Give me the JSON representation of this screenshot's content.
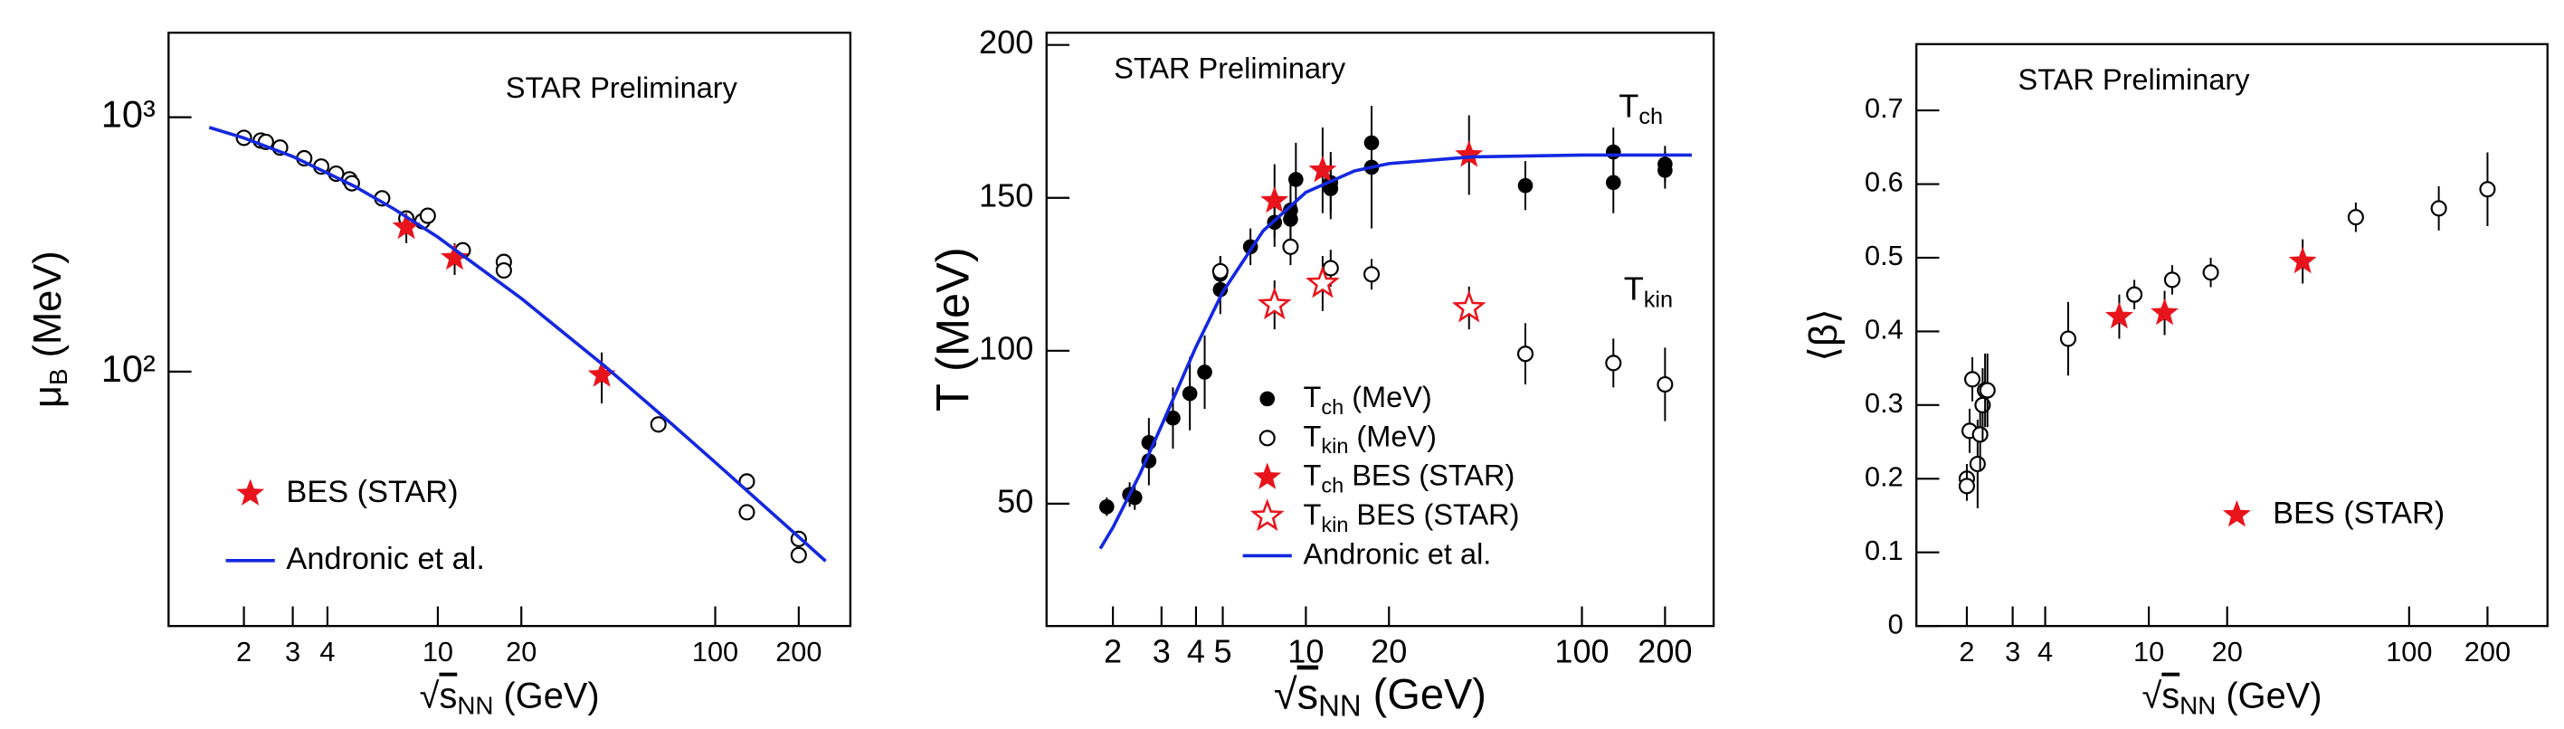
{
  "chart_data": [
    {
      "type": "scatter",
      "xlog": true,
      "ylog": true,
      "annotation": "STAR Preliminary",
      "xlabel": {
        "radical": "√",
        "text": "s",
        "sub": "NN",
        "rest": " (GeV)"
      },
      "ylabel": {
        "text": "μ",
        "sub": "B",
        "rest": " (MeV)"
      },
      "xlim": [
        1.07,
        307
      ],
      "xticks": [
        2,
        3,
        4,
        10,
        20,
        100,
        200
      ],
      "ylim": [
        10,
        2150
      ],
      "yticks": [
        {
          "value": 1000,
          "label": "10³"
        },
        {
          "value": 100,
          "label": "10²"
        }
      ],
      "series": [
        {
          "marker": "circle-open",
          "color": "#000000",
          "x": [
            2.0,
            2.3,
            2.4,
            2.7,
            3.3,
            3.8,
            4.3,
            4.8,
            4.9,
            6.3,
            7.7,
            8.8,
            9.2,
            12.3,
            17.3,
            17.3,
            62.4,
            130,
            130,
            200,
            200
          ],
          "values": [
            830,
            810,
            800,
            760,
            690,
            640,
            600,
            570,
            550,
            480,
            400,
            390,
            410,
            300,
            270,
            250,
            62,
            37,
            28,
            22,
            19
          ]
        },
        {
          "name": "BES (STAR)",
          "marker": "star",
          "color": "#e8141c",
          "x": [
            7.7,
            11.5,
            39
          ],
          "values": [
            370,
            280,
            97
          ],
          "errors": [
            50,
            40,
            22
          ]
        },
        {
          "name": "Andronic et al.",
          "marker": "line",
          "color": "#1428e0",
          "x": [
            1.5,
            2,
            3,
            5,
            7,
            10,
            20,
            40,
            70,
            100,
            200,
            250
          ],
          "values": [
            912,
            829,
            701,
            536,
            434,
            338,
            194,
            105,
            62,
            44,
            22.4,
            18
          ]
        }
      ]
    },
    {
      "type": "scatter",
      "xlog": true,
      "ylog": false,
      "annotation": "STAR Preliminary",
      "labels": [
        {
          "text": "T",
          "sub": "ch"
        },
        {
          "text": "T",
          "sub": "kin"
        }
      ],
      "xlabel": {
        "radical": "√",
        "text": "s",
        "sub": "NN",
        "rest": " (GeV)"
      },
      "ylabel": {
        "text": "T (MeV)"
      },
      "xlim": [
        1.15,
        300
      ],
      "xticks": [
        2,
        3,
        4,
        5,
        10,
        20,
        100,
        200
      ],
      "ylim": [
        10,
        204
      ],
      "yticks": [
        50,
        100,
        150,
        200
      ],
      "series": [
        {
          "name": "T",
          "name_sub": "ch",
          "name_rest": " (MeV)",
          "marker": "circle",
          "color": "#000000",
          "x": [
            1.9,
            2.3,
            2.4,
            2.7,
            2.7,
            3.3,
            3.8,
            4.3,
            4.9,
            4.9,
            6.3,
            7.7,
            8.8,
            8.8,
            9.2,
            12.3,
            12.3,
            17.3,
            17.3,
            62.4,
            130,
            130,
            200,
            200
          ],
          "values": [
            49,
            53,
            52,
            70,
            64,
            78,
            86,
            93,
            120,
            125,
            134,
            142,
            146,
            143,
            156,
            153,
            155,
            160,
            168,
            154,
            155,
            165,
            159,
            161
          ],
          "errors": [
            3,
            4,
            4,
            8,
            8,
            10,
            12,
            12,
            8,
            6,
            6,
            8,
            10,
            8,
            12,
            10,
            10,
            20,
            12,
            8,
            10,
            8,
            6,
            6
          ]
        },
        {
          "name": "T",
          "name_sub": "kin",
          "name_rest": " (MeV)",
          "marker": "circle-open",
          "color": "#000000",
          "x": [
            4.9,
            8.8,
            12.3,
            17.3,
            62.4,
            130,
            200
          ],
          "values": [
            126,
            134,
            127,
            125,
            99,
            96,
            89
          ],
          "errors": [
            5,
            6,
            6,
            5,
            10,
            8,
            12
          ]
        },
        {
          "name": "T",
          "name_sub": "ch",
          "name_rest": " BES (STAR)",
          "marker": "star",
          "color": "#e8141c",
          "x": [
            7.7,
            11.5,
            39
          ],
          "values": [
            149,
            159,
            164
          ],
          "errors": [
            12,
            14,
            13
          ]
        },
        {
          "name": "T",
          "name_sub": "kin",
          "name_rest": " BES (STAR)",
          "marker": "star-open",
          "color": "#e8141c",
          "x": [
            7.7,
            11.5,
            39
          ],
          "values": [
            115,
            122,
            114
          ],
          "errors": [
            8,
            9,
            7
          ]
        },
        {
          "name": "Andronic et al.",
          "marker": "line",
          "color": "#1428e0",
          "x": [
            1.8,
            2,
            2.5,
            3,
            4,
            5,
            7,
            10,
            15,
            20,
            40,
            100,
            250
          ],
          "values": [
            35.3,
            42.2,
            59.5,
            75.5,
            101.3,
            119.2,
            139.2,
            151.8,
            158.8,
            161.2,
            163.4,
            164,
            164
          ]
        }
      ]
    },
    {
      "type": "scatter",
      "xlog": true,
      "ylog": false,
      "annotation": "STAR Preliminary",
      "xlabel": {
        "radical": "√",
        "text": "s",
        "sub": "NN",
        "rest": " (GeV)"
      },
      "ylabel": {
        "text": "⟨β⟩"
      },
      "xlim": [
        1.28,
        340
      ],
      "xticks": [
        2,
        3,
        4,
        10,
        20,
        100,
        200
      ],
      "ylim": [
        0,
        0.79
      ],
      "yticks": [
        0,
        0.1,
        0.2,
        0.3,
        0.4,
        0.5,
        0.6,
        0.7
      ],
      "series": [
        {
          "marker": "circle-open",
          "color": "#000000",
          "x": [
            2.0,
            2.0,
            2.05,
            2.1,
            2.2,
            2.25,
            2.3,
            2.35,
            2.4,
            4.9,
            8.8,
            12.3,
            17.3,
            62.4,
            130,
            200
          ],
          "values": [
            0.2,
            0.19,
            0.265,
            0.335,
            0.22,
            0.26,
            0.3,
            0.32,
            0.32,
            0.39,
            0.45,
            0.47,
            0.48,
            0.555,
            0.567,
            0.593
          ],
          "errors": [
            0.02,
            0.02,
            0.03,
            0.03,
            0.06,
            0.05,
            0.05,
            0.05,
            0.05,
            0.05,
            0.02,
            0.02,
            0.02,
            0.02,
            0.03,
            0.05
          ]
        },
        {
          "name": "BES (STAR)",
          "marker": "star",
          "color": "#e8141c",
          "x": [
            7.7,
            11.5,
            39
          ],
          "values": [
            0.42,
            0.425,
            0.495
          ],
          "errors": [
            0.03,
            0.03,
            0.03
          ]
        }
      ]
    }
  ]
}
